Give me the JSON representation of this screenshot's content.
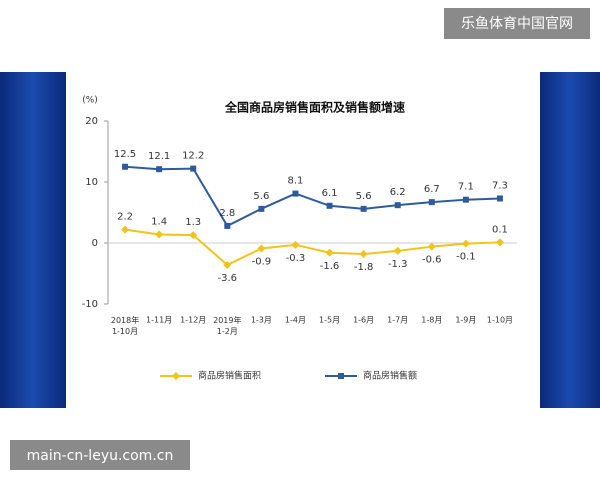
{
  "chart_data": {
    "type": "line",
    "title": "全国商品房销售面积及销售额增速",
    "unit_label": "(%)",
    "categories": [
      "2018年 1-10月",
      "1-11月",
      "1-12月",
      "2019年 1-2月",
      "1-3月",
      "1-4月",
      "1-5月",
      "1-6月",
      "1-7月",
      "1-8月",
      "1-9月",
      "1-10月"
    ],
    "series": [
      {
        "name": "商品房销售面积",
        "color": "#f0c419",
        "values": [
          2.2,
          1.4,
          1.3,
          -3.6,
          -0.9,
          -0.3,
          -1.6,
          -1.8,
          -1.3,
          -0.6,
          -0.1,
          0.1
        ]
      },
      {
        "name": "商品房销售额",
        "color": "#2e5c9a",
        "values": [
          12.5,
          12.1,
          12.2,
          2.8,
          5.6,
          8.1,
          6.1,
          5.6,
          6.2,
          6.7,
          7.1,
          7.3
        ]
      }
    ],
    "ylim": [
      -10,
      20
    ],
    "yticks": [
      -10,
      0,
      10,
      20
    ]
  },
  "overlay": {
    "site_name": "乐鱼体育中国官网",
    "site_url": "main-cn-leyu.com.cn"
  }
}
